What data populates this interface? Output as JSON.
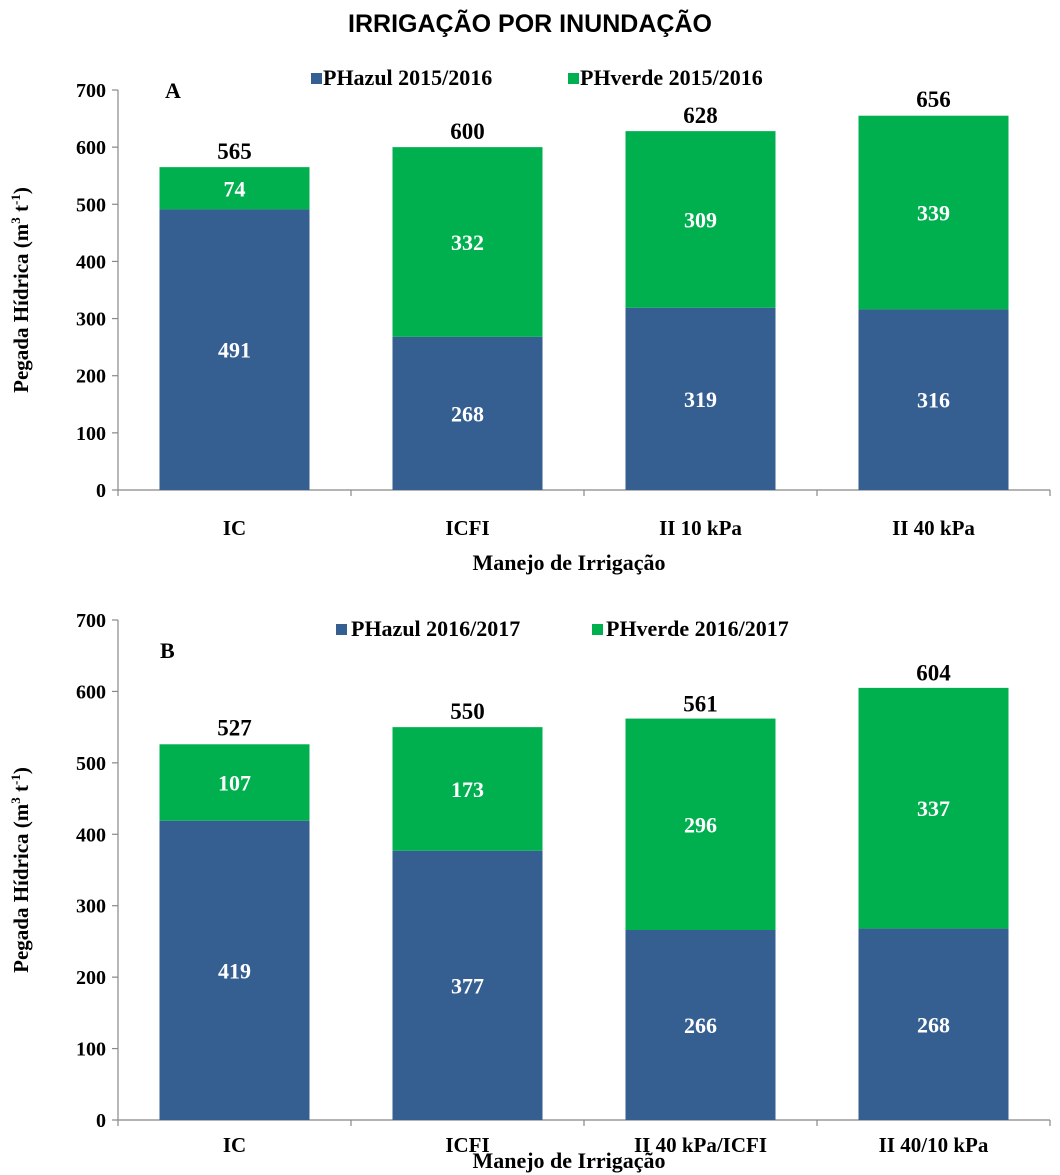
{
  "page_title": "IRRIGAÇÃO POR INUNDAÇÃO",
  "colors": {
    "blue": "#355E91",
    "green": "#00B04F"
  },
  "chart_data": [
    {
      "type": "bar",
      "stacked": true,
      "panel_label": "A",
      "categories": [
        "IC",
        "ICFI",
        "II 10 kPa",
        "II 40 kPa"
      ],
      "series": [
        {
          "name": "PHazul 2015/2016",
          "color": "#355E91",
          "values": [
            491,
            268,
            319,
            316
          ]
        },
        {
          "name": "PHverde 2015/2016",
          "color": "#00B04F",
          "values": [
            74,
            332,
            309,
            339
          ]
        }
      ],
      "totals": [
        565,
        600,
        628,
        656
      ],
      "xlabel": "Manejo de Irrigação",
      "ylabel_main": "Pegada Hídrica (m",
      "ylabel_sup1": "3",
      "ylabel_mid": " t",
      "ylabel_sup2": "-1",
      "ylabel_end": ")",
      "ylim": [
        0,
        700
      ],
      "yticks": [
        0,
        100,
        200,
        300,
        400,
        500,
        600,
        700
      ],
      "legend_position": "top"
    },
    {
      "type": "bar",
      "stacked": true,
      "panel_label": "B",
      "categories": [
        "IC",
        "ICFI",
        "II 40 kPa/ICFI",
        "II 40/10 kPa"
      ],
      "series": [
        {
          "name": "PHazul 2016/2017",
          "color": "#355E91",
          "values": [
            419,
            377,
            266,
            268
          ]
        },
        {
          "name": "PHverde 2016/2017",
          "color": "#00B04F",
          "values": [
            107,
            173,
            296,
            337
          ]
        }
      ],
      "totals": [
        527,
        550,
        561,
        604
      ],
      "xlabel": "Manejo de  Irrigação",
      "ylabel_main": "Pegada Hídrica (m",
      "ylabel_sup1": "3",
      "ylabel_mid": " t",
      "ylabel_sup2": "-1",
      "ylabel_end": ")",
      "ylim": [
        0,
        700
      ],
      "yticks": [
        0,
        100,
        200,
        300,
        400,
        500,
        600,
        700
      ],
      "legend_position": "top"
    }
  ]
}
